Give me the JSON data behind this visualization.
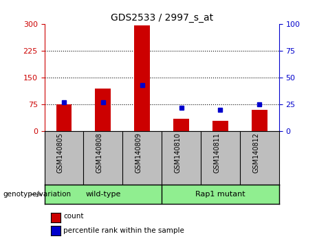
{
  "title": "GDS2533 / 2997_s_at",
  "samples": [
    "GSM140805",
    "GSM140808",
    "GSM140809",
    "GSM140810",
    "GSM140811",
    "GSM140812"
  ],
  "counts": [
    75,
    120,
    296,
    35,
    30,
    60
  ],
  "percentiles": [
    27,
    27,
    43,
    22,
    20,
    25
  ],
  "left_ylim": [
    0,
    300
  ],
  "right_ylim": [
    0,
    100
  ],
  "left_yticks": [
    0,
    75,
    150,
    225,
    300
  ],
  "right_yticks": [
    0,
    25,
    50,
    75,
    100
  ],
  "left_tick_color": "#CC0000",
  "right_tick_color": "#0000CC",
  "bar_color": "#CC0000",
  "dot_color": "#0000CC",
  "grid_yticks": [
    75,
    150,
    225
  ],
  "xlabel_area_color": "#BEBEBE",
  "group_label_area_color": "#90EE90",
  "genotype_label": "genotype/variation",
  "legend_count": "count",
  "legend_percentile": "percentile rank within the sample",
  "group1_label": "wild-type",
  "group2_label": "Rap1 mutant",
  "bar_width": 0.4
}
